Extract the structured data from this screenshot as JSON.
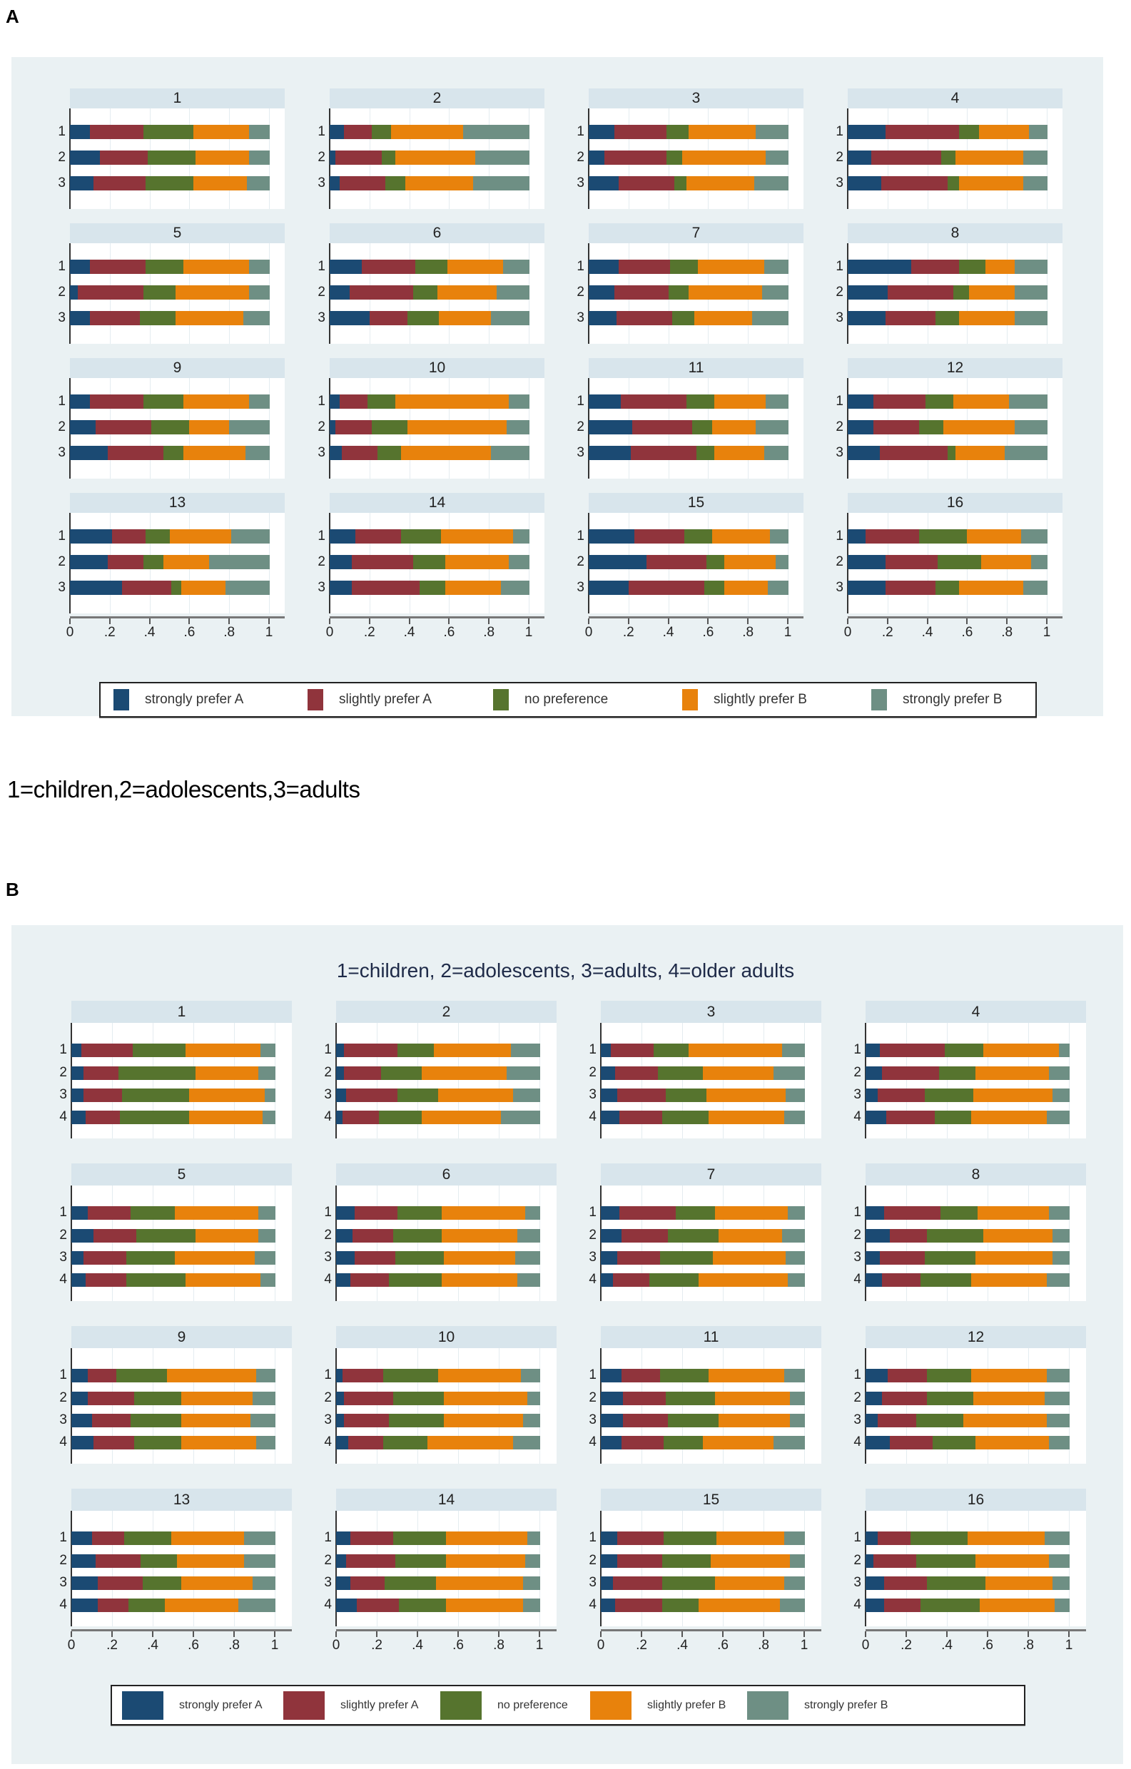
{
  "labels": {
    "panel_a": "A",
    "panel_b": "B",
    "note_a": "1=children,2=adolescents,3=adults"
  },
  "chart_data": [
    {
      "type": "bar",
      "orientation": "horizontal-stacked",
      "title": "",
      "categories": [
        "1",
        "2",
        "3"
      ],
      "xlim": [
        0,
        1
      ],
      "xticks": [
        0,
        0.2,
        0.4,
        0.6,
        0.8,
        1
      ],
      "xtick_labels": [
        "0",
        ".2",
        ".4",
        ".6",
        ".8",
        "1"
      ],
      "grid": true,
      "legend_position": "bottom",
      "series": [
        {
          "name": "strongly prefer A",
          "color": "#1b4a73"
        },
        {
          "name": "slightly prefer A",
          "color": "#90343c"
        },
        {
          "name": "no preference",
          "color": "#56742e"
        },
        {
          "name": "slightly prefer B",
          "color": "#e8820c"
        },
        {
          "name": "strongly prefer B",
          "color": "#6e8f84"
        }
      ],
      "panels": [
        {
          "label": "1",
          "bars": [
            [
              0.1,
              0.27,
              0.25,
              0.28,
              0.1
            ],
            [
              0.15,
              0.24,
              0.24,
              0.27,
              0.1
            ],
            [
              0.12,
              0.26,
              0.24,
              0.27,
              0.11
            ]
          ]
        },
        {
          "label": "2",
          "bars": [
            [
              0.07,
              0.14,
              0.1,
              0.36,
              0.33
            ],
            [
              0.03,
              0.23,
              0.07,
              0.4,
              0.27
            ],
            [
              0.05,
              0.23,
              0.1,
              0.34,
              0.28
            ]
          ]
        },
        {
          "label": "3",
          "bars": [
            [
              0.13,
              0.26,
              0.11,
              0.34,
              0.16
            ],
            [
              0.08,
              0.31,
              0.08,
              0.42,
              0.11
            ],
            [
              0.15,
              0.28,
              0.06,
              0.34,
              0.17
            ]
          ]
        },
        {
          "label": "4",
          "bars": [
            [
              0.19,
              0.37,
              0.1,
              0.25,
              0.09
            ],
            [
              0.12,
              0.35,
              0.07,
              0.34,
              0.12
            ],
            [
              0.17,
              0.33,
              0.06,
              0.32,
              0.12
            ]
          ]
        },
        {
          "label": "5",
          "bars": [
            [
              0.1,
              0.28,
              0.19,
              0.33,
              0.1
            ],
            [
              0.04,
              0.33,
              0.16,
              0.37,
              0.1
            ],
            [
              0.1,
              0.25,
              0.18,
              0.34,
              0.13
            ]
          ]
        },
        {
          "label": "6",
          "bars": [
            [
              0.16,
              0.27,
              0.16,
              0.28,
              0.13
            ],
            [
              0.1,
              0.32,
              0.12,
              0.3,
              0.16
            ],
            [
              0.2,
              0.19,
              0.16,
              0.26,
              0.19
            ]
          ]
        },
        {
          "label": "7",
          "bars": [
            [
              0.15,
              0.26,
              0.14,
              0.33,
              0.12
            ],
            [
              0.13,
              0.27,
              0.1,
              0.37,
              0.13
            ],
            [
              0.14,
              0.28,
              0.11,
              0.29,
              0.18
            ]
          ]
        },
        {
          "label": "8",
          "bars": [
            [
              0.32,
              0.24,
              0.13,
              0.15,
              0.16
            ],
            [
              0.2,
              0.33,
              0.08,
              0.23,
              0.16
            ],
            [
              0.19,
              0.25,
              0.12,
              0.28,
              0.16
            ]
          ]
        },
        {
          "label": "9",
          "bars": [
            [
              0.1,
              0.27,
              0.2,
              0.33,
              0.1
            ],
            [
              0.13,
              0.28,
              0.19,
              0.2,
              0.2
            ],
            [
              0.19,
              0.28,
              0.1,
              0.31,
              0.12
            ]
          ]
        },
        {
          "label": "10",
          "bars": [
            [
              0.05,
              0.14,
              0.14,
              0.57,
              0.1
            ],
            [
              0.03,
              0.18,
              0.18,
              0.5,
              0.11
            ],
            [
              0.06,
              0.18,
              0.12,
              0.45,
              0.19
            ]
          ]
        },
        {
          "label": "11",
          "bars": [
            [
              0.16,
              0.33,
              0.14,
              0.26,
              0.11
            ],
            [
              0.22,
              0.3,
              0.1,
              0.22,
              0.16
            ],
            [
              0.21,
              0.33,
              0.09,
              0.25,
              0.12
            ]
          ]
        },
        {
          "label": "12",
          "bars": [
            [
              0.13,
              0.26,
              0.14,
              0.28,
              0.19
            ],
            [
              0.13,
              0.23,
              0.12,
              0.36,
              0.16
            ],
            [
              0.16,
              0.34,
              0.04,
              0.25,
              0.21
            ]
          ]
        },
        {
          "label": "13",
          "bars": [
            [
              0.21,
              0.17,
              0.12,
              0.31,
              0.19
            ],
            [
              0.19,
              0.18,
              0.1,
              0.23,
              0.3
            ],
            [
              0.26,
              0.25,
              0.05,
              0.22,
              0.22
            ]
          ]
        },
        {
          "label": "14",
          "bars": [
            [
              0.13,
              0.23,
              0.2,
              0.36,
              0.08
            ],
            [
              0.11,
              0.31,
              0.16,
              0.32,
              0.1
            ],
            [
              0.11,
              0.34,
              0.13,
              0.28,
              0.14
            ]
          ]
        },
        {
          "label": "15",
          "bars": [
            [
              0.23,
              0.25,
              0.14,
              0.29,
              0.09
            ],
            [
              0.29,
              0.3,
              0.09,
              0.26,
              0.06
            ],
            [
              0.2,
              0.38,
              0.1,
              0.22,
              0.1
            ]
          ]
        },
        {
          "label": "16",
          "bars": [
            [
              0.09,
              0.27,
              0.24,
              0.27,
              0.13
            ],
            [
              0.19,
              0.26,
              0.22,
              0.25,
              0.08
            ],
            [
              0.19,
              0.25,
              0.12,
              0.32,
              0.12
            ]
          ]
        }
      ]
    },
    {
      "type": "bar",
      "orientation": "horizontal-stacked",
      "title": "1=children, 2=adolescents, 3=adults, 4=older adults",
      "categories": [
        "1",
        "2",
        "3",
        "4"
      ],
      "xlim": [
        0,
        1
      ],
      "xticks": [
        0,
        0.2,
        0.4,
        0.6,
        0.8,
        1
      ],
      "xtick_labels": [
        "0",
        ".2",
        ".4",
        ".6",
        ".8",
        "1"
      ],
      "grid": true,
      "legend_position": "bottom",
      "series": [
        {
          "name": "strongly prefer A",
          "color": "#1b4a73"
        },
        {
          "name": "slightly prefer A",
          "color": "#90343c"
        },
        {
          "name": "no preference",
          "color": "#56742e"
        },
        {
          "name": "slightly prefer B",
          "color": "#e8820c"
        },
        {
          "name": "strongly prefer B",
          "color": "#6e8f84"
        }
      ],
      "panels": [
        {
          "label": "1",
          "bars": [
            [
              0.05,
              0.25,
              0.26,
              0.37,
              0.07
            ],
            [
              0.06,
              0.17,
              0.38,
              0.31,
              0.08
            ],
            [
              0.06,
              0.19,
              0.33,
              0.37,
              0.05
            ],
            [
              0.07,
              0.17,
              0.34,
              0.36,
              0.06
            ]
          ]
        },
        {
          "label": "2",
          "bars": [
            [
              0.04,
              0.26,
              0.18,
              0.38,
              0.14
            ],
            [
              0.04,
              0.18,
              0.2,
              0.42,
              0.16
            ],
            [
              0.05,
              0.25,
              0.2,
              0.37,
              0.13
            ],
            [
              0.03,
              0.18,
              0.21,
              0.39,
              0.19
            ]
          ]
        },
        {
          "label": "3",
          "bars": [
            [
              0.05,
              0.21,
              0.17,
              0.46,
              0.11
            ],
            [
              0.07,
              0.21,
              0.22,
              0.35,
              0.15
            ],
            [
              0.08,
              0.24,
              0.2,
              0.39,
              0.09
            ],
            [
              0.09,
              0.21,
              0.23,
              0.37,
              0.1
            ]
          ]
        },
        {
          "label": "4",
          "bars": [
            [
              0.07,
              0.32,
              0.19,
              0.37,
              0.05
            ],
            [
              0.08,
              0.28,
              0.18,
              0.36,
              0.1
            ],
            [
              0.06,
              0.23,
              0.24,
              0.39,
              0.08
            ],
            [
              0.1,
              0.24,
              0.18,
              0.37,
              0.11
            ]
          ]
        },
        {
          "label": "5",
          "bars": [
            [
              0.08,
              0.21,
              0.22,
              0.41,
              0.08
            ],
            [
              0.11,
              0.21,
              0.29,
              0.31,
              0.08
            ],
            [
              0.06,
              0.21,
              0.24,
              0.39,
              0.1
            ],
            [
              0.07,
              0.2,
              0.29,
              0.37,
              0.07
            ]
          ]
        },
        {
          "label": "6",
          "bars": [
            [
              0.09,
              0.21,
              0.22,
              0.41,
              0.07
            ],
            [
              0.08,
              0.2,
              0.24,
              0.37,
              0.11
            ],
            [
              0.09,
              0.2,
              0.24,
              0.35,
              0.12
            ],
            [
              0.07,
              0.19,
              0.26,
              0.37,
              0.11
            ]
          ]
        },
        {
          "label": "7",
          "bars": [
            [
              0.09,
              0.28,
              0.19,
              0.36,
              0.08
            ],
            [
              0.1,
              0.23,
              0.25,
              0.31,
              0.11
            ],
            [
              0.08,
              0.21,
              0.26,
              0.36,
              0.09
            ],
            [
              0.06,
              0.18,
              0.24,
              0.44,
              0.08
            ]
          ]
        },
        {
          "label": "8",
          "bars": [
            [
              0.09,
              0.28,
              0.18,
              0.35,
              0.1
            ],
            [
              0.12,
              0.18,
              0.28,
              0.34,
              0.08
            ],
            [
              0.07,
              0.22,
              0.25,
              0.38,
              0.08
            ],
            [
              0.08,
              0.19,
              0.25,
              0.37,
              0.11
            ]
          ]
        },
        {
          "label": "9",
          "bars": [
            [
              0.08,
              0.14,
              0.25,
              0.44,
              0.09
            ],
            [
              0.08,
              0.23,
              0.23,
              0.35,
              0.11
            ],
            [
              0.1,
              0.19,
              0.25,
              0.34,
              0.12
            ],
            [
              0.11,
              0.2,
              0.23,
              0.37,
              0.09
            ]
          ]
        },
        {
          "label": "10",
          "bars": [
            [
              0.03,
              0.2,
              0.27,
              0.41,
              0.09
            ],
            [
              0.04,
              0.24,
              0.25,
              0.41,
              0.06
            ],
            [
              0.04,
              0.22,
              0.27,
              0.39,
              0.08
            ],
            [
              0.06,
              0.17,
              0.22,
              0.42,
              0.13
            ]
          ]
        },
        {
          "label": "11",
          "bars": [
            [
              0.1,
              0.19,
              0.24,
              0.37,
              0.1
            ],
            [
              0.11,
              0.21,
              0.24,
              0.37,
              0.07
            ],
            [
              0.11,
              0.22,
              0.25,
              0.35,
              0.07
            ],
            [
              0.1,
              0.21,
              0.19,
              0.35,
              0.15
            ]
          ]
        },
        {
          "label": "12",
          "bars": [
            [
              0.11,
              0.19,
              0.22,
              0.37,
              0.11
            ],
            [
              0.08,
              0.22,
              0.23,
              0.35,
              0.12
            ],
            [
              0.06,
              0.19,
              0.23,
              0.41,
              0.11
            ],
            [
              0.12,
              0.21,
              0.21,
              0.36,
              0.1
            ]
          ]
        },
        {
          "label": "13",
          "bars": [
            [
              0.1,
              0.16,
              0.23,
              0.36,
              0.15
            ],
            [
              0.12,
              0.22,
              0.18,
              0.33,
              0.15
            ],
            [
              0.13,
              0.22,
              0.19,
              0.35,
              0.11
            ],
            [
              0.13,
              0.15,
              0.18,
              0.36,
              0.18
            ]
          ]
        },
        {
          "label": "14",
          "bars": [
            [
              0.07,
              0.21,
              0.26,
              0.4,
              0.06
            ],
            [
              0.05,
              0.24,
              0.25,
              0.39,
              0.07
            ],
            [
              0.07,
              0.17,
              0.25,
              0.43,
              0.08
            ],
            [
              0.1,
              0.21,
              0.23,
              0.38,
              0.08
            ]
          ]
        },
        {
          "label": "15",
          "bars": [
            [
              0.08,
              0.23,
              0.26,
              0.33,
              0.1
            ],
            [
              0.08,
              0.22,
              0.24,
              0.39,
              0.07
            ],
            [
              0.06,
              0.24,
              0.26,
              0.34,
              0.1
            ],
            [
              0.07,
              0.23,
              0.18,
              0.4,
              0.12
            ]
          ]
        },
        {
          "label": "16",
          "bars": [
            [
              0.06,
              0.16,
              0.28,
              0.38,
              0.12
            ],
            [
              0.04,
              0.21,
              0.29,
              0.36,
              0.1
            ],
            [
              0.09,
              0.21,
              0.29,
              0.33,
              0.08
            ],
            [
              0.09,
              0.18,
              0.29,
              0.37,
              0.07
            ]
          ]
        }
      ]
    }
  ]
}
